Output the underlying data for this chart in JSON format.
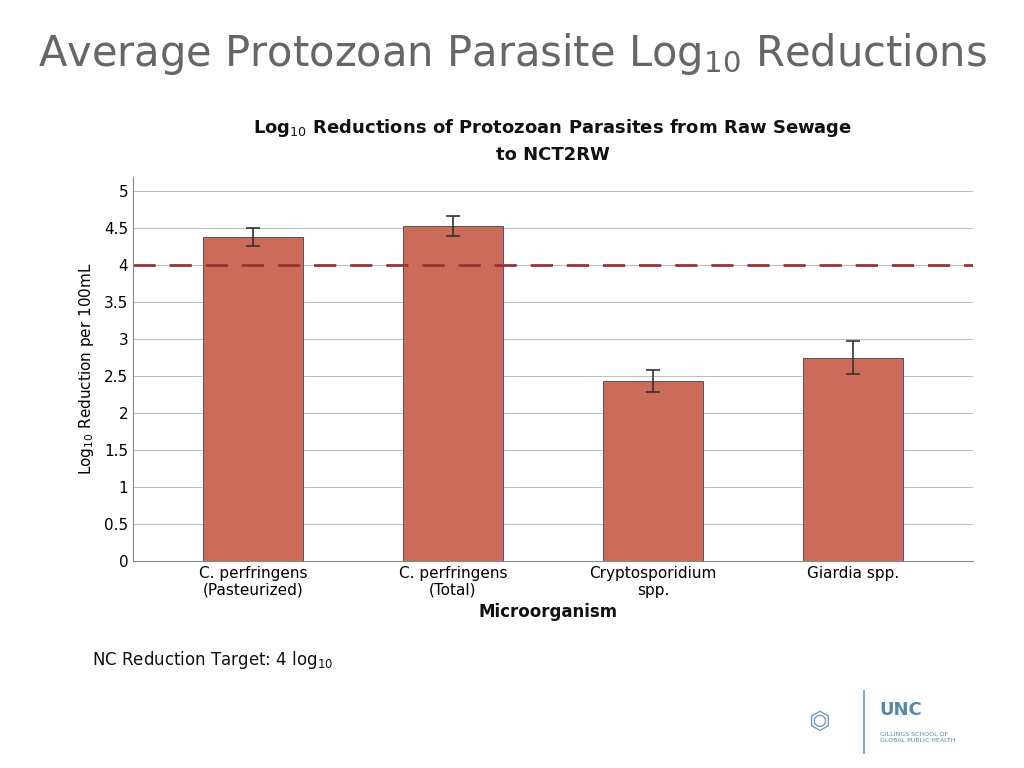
{
  "main_title": "Average Protozoan Parasite Log$_{10}$ Reductions",
  "chart_title": "Log$_{10}$ Reductions of Protozoan Parasites from Raw Sewage\nto NCT2RW",
  "categories": [
    "C. perfringens\n(Pasteurized)",
    "C. perfringens\n(Total)",
    "Cryptosporidium\nspp.",
    "Giardia spp."
  ],
  "values": [
    4.38,
    4.53,
    2.43,
    2.75
  ],
  "errors": [
    0.12,
    0.14,
    0.15,
    0.22
  ],
  "bar_color": "#CD6B5A",
  "bar_edge_color": "#555555",
  "bar_width": 0.5,
  "ylabel": "Log$_{10}$ Reduction per 100mL",
  "xlabel": "Microorganism",
  "ylim": [
    0,
    5.2
  ],
  "yticks": [
    0,
    0.5,
    1,
    1.5,
    2,
    2.5,
    3,
    3.5,
    4,
    4.5,
    5
  ],
  "dashed_line_y": 4.0,
  "dashed_line_color": "#993333",
  "background_color": "#FFFFFF",
  "grid_color": "#BBBBBB",
  "main_title_color": "#666666",
  "chart_title_color": "#111111"
}
